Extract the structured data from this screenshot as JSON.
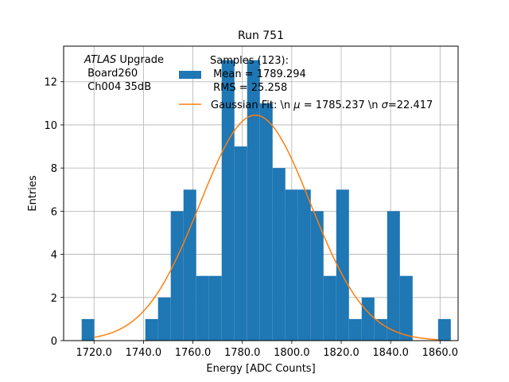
{
  "chart_data": {
    "type": "bar",
    "title": "Run 751",
    "xlabel": "Energy [ADC Counts]",
    "ylabel": "Entries",
    "xlim": [
      1707.7,
      1867.3
    ],
    "ylim": [
      0,
      13.65
    ],
    "x_ticks": [
      1720,
      1740,
      1760,
      1780,
      1800,
      1820,
      1840,
      1860
    ],
    "x_tick_labels": [
      "1720.0",
      "1740.0",
      "1760.0",
      "1780.0",
      "1800.0",
      "1820.0",
      "1840.0",
      "1860.0"
    ],
    "y_ticks": [
      0,
      2,
      4,
      6,
      8,
      10,
      12
    ],
    "y_tick_labels": [
      "0",
      "2",
      "4",
      "6",
      "8",
      "10",
      "12"
    ],
    "grid": true,
    "bin_width": 5.15,
    "bin_starts": [
      1715.0,
      1720.15,
      1725.3,
      1730.45,
      1735.6,
      1740.75,
      1745.9,
      1751.05,
      1756.2,
      1761.35,
      1766.5,
      1771.65,
      1776.8,
      1781.95,
      1787.1,
      1792.25,
      1797.4,
      1802.55,
      1807.7,
      1812.85,
      1818.0,
      1823.15,
      1828.3,
      1833.45,
      1838.6,
      1843.75,
      1848.9,
      1854.05,
      1859.2
    ],
    "counts": [
      1,
      0,
      0,
      0,
      0,
      1,
      2,
      6,
      7,
      3,
      3,
      13,
      9,
      13,
      11,
      8,
      7,
      7,
      6,
      3,
      7,
      1,
      2,
      1,
      6,
      3,
      0,
      0,
      1
    ],
    "bar_color": "#1f77b4",
    "fit": {
      "name": "Gaussian Fit: \\n μ = 1785.237 \\n σ=22.417",
      "mu": 1785.237,
      "sigma": 22.417,
      "amplitude": 10.45,
      "color": "#ff7f0e"
    },
    "legend": {
      "placement": "top-right",
      "hist_label_lines": [
        "Samples (123):",
        " Mean = 1789.294",
        " RMS = 25.258"
      ]
    },
    "annotation_lines": [
      "ATLAS Upgrade",
      " Board260",
      " Ch004 35dB"
    ]
  }
}
